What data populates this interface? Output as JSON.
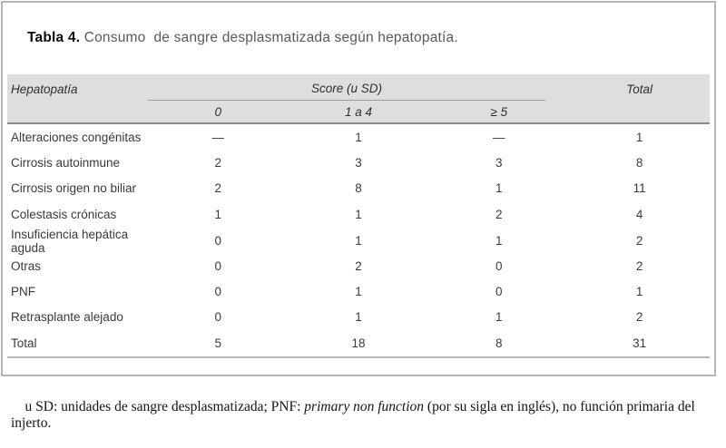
{
  "title": {
    "bold": "Tabla 4.",
    "rest": " Consumo  de sangre desplasmatizada según hepatopatía."
  },
  "table": {
    "header": {
      "hepatopatia": "Hepatopatía",
      "score_group": "Score (u SD)",
      "total": "Total",
      "sub_0": "0",
      "sub_1_4": "1 a 4",
      "sub_ge5": "≥ 5"
    },
    "rows": [
      {
        "cells": [
          "Alteraciones congénitas",
          "—",
          "1",
          "—",
          "1"
        ]
      },
      {
        "cells": [
          "Cirrosis autoinmune",
          "2",
          "3",
          "3",
          "8"
        ]
      },
      {
        "cells": [
          "Cirrosis origen no biliar",
          "2",
          "8",
          "1",
          "11"
        ]
      },
      {
        "cells": [
          "Colestasis crónicas",
          "1",
          "1",
          "2",
          "4"
        ]
      },
      {
        "cells": [
          "Insuficiencia hepática aguda",
          "0",
          "1",
          "1",
          "2"
        ]
      },
      {
        "cells": [
          "Otras",
          "0",
          "2",
          "0",
          "2"
        ]
      },
      {
        "cells": [
          "PNF",
          "0",
          "1",
          "0",
          "1"
        ]
      },
      {
        "cells": [
          "Retrasplante alejado",
          "0",
          "1",
          "1",
          "2"
        ]
      },
      {
        "cells": [
          "Total",
          "5",
          "18",
          "8",
          "31"
        ]
      }
    ]
  },
  "footnote": {
    "part1": "u SD: unidades de sangre desplasmatizada; PNF: ",
    "italic": "primary non function",
    "part2": " (por su sigla en inglés), no función primaria del injerto."
  },
  "colors": {
    "frame_border": "#b6b6b6",
    "header_bg": "#dedede",
    "header_rule": "#8a8a8a",
    "score_underline": "#9c9c9c",
    "bottom_rule": "#b8b8b8",
    "title_gray": "#58595b",
    "body_text": "#3a3a3a"
  }
}
